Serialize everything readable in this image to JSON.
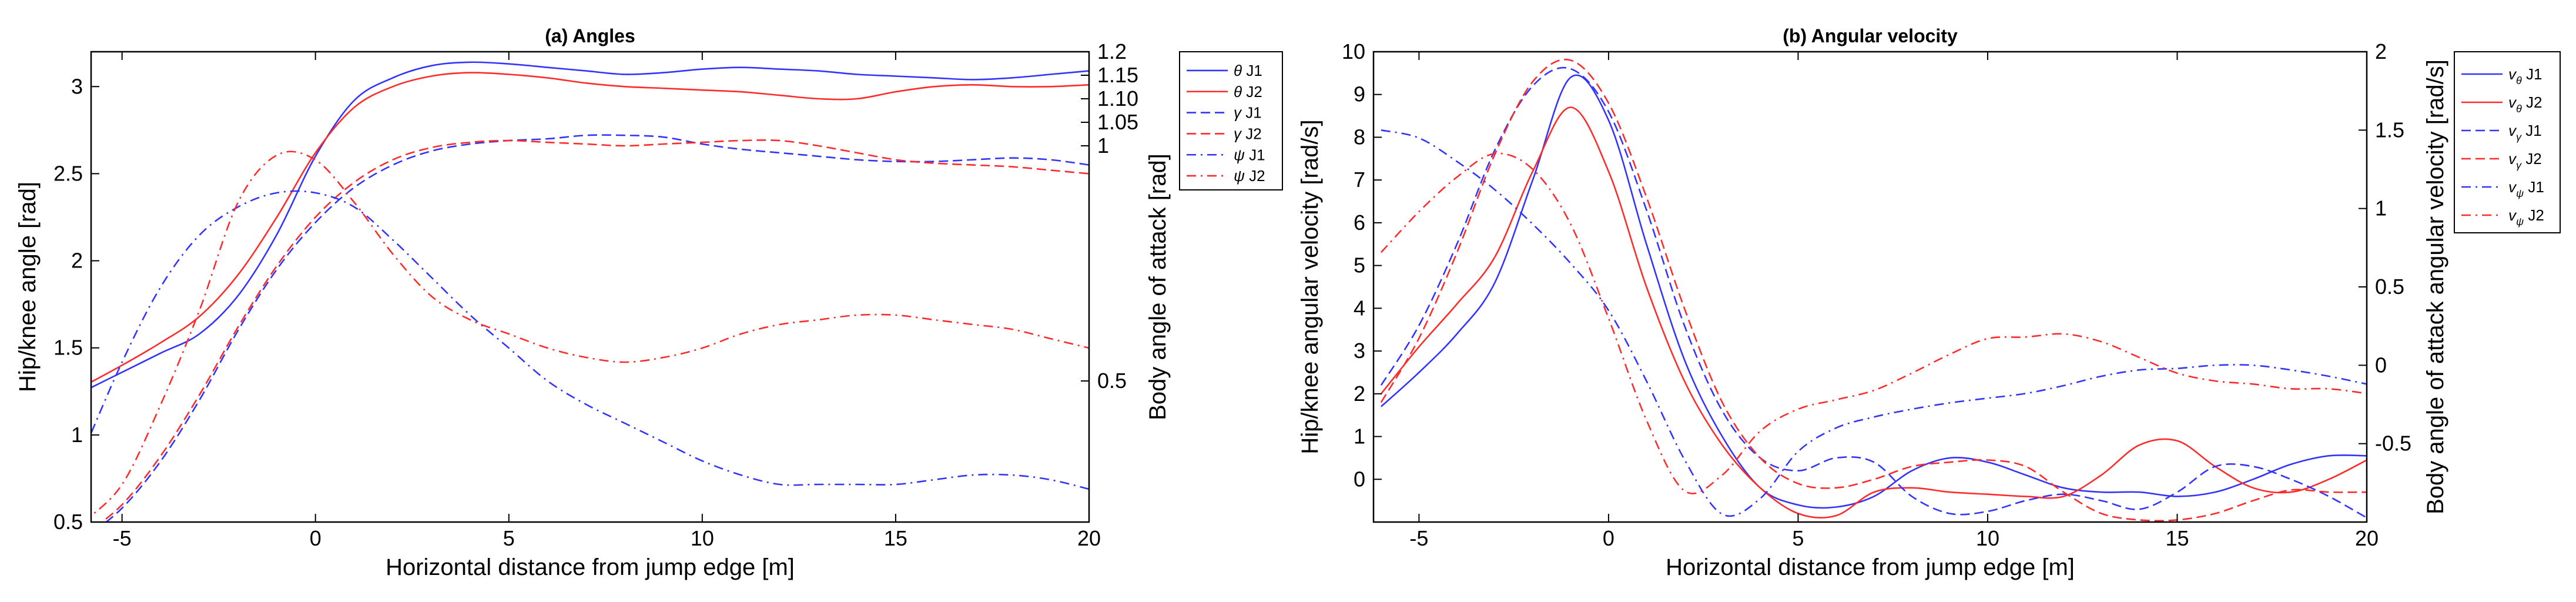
{
  "chart_data": [
    {
      "type": "line",
      "title": "(a) Angles",
      "xlabel": "Horizontal distance from jump edge [m]",
      "ylabel": "Hip/knee angle [rad]",
      "y2label": "Body angle of attack [rad]",
      "xlim": [
        -5.8,
        20
      ],
      "ylim": [
        0.5,
        3.2
      ],
      "y2lim": [
        0.2,
        1.2
      ],
      "xticks": [
        -5,
        0,
        5,
        10,
        15,
        20
      ],
      "xticklabels": [
        "-5",
        "0",
        "5",
        "10",
        "15",
        "20"
      ],
      "yticks": [
        0.5,
        1,
        1.5,
        2,
        2.5,
        3
      ],
      "yticklabels": [
        "0.5",
        "1",
        "1.5",
        "2",
        "2.5",
        "3"
      ],
      "y2ticks": [
        0.5,
        1,
        1.05,
        1.1,
        1.15,
        1.2
      ],
      "y2ticklabels": [
        "0.5",
        "1",
        "1.05",
        "1.10",
        "1.15",
        "1.2"
      ],
      "legend_position": "outside-right",
      "series": [
        {
          "name": "θ J1",
          "label_sym": "θ",
          "label_txt": "J1",
          "sub": "",
          "color": "#3333ff",
          "dash": "solid",
          "axis": "left",
          "x": [
            -6,
            -5,
            -4,
            -3,
            -2,
            -1,
            0,
            1,
            2,
            3,
            4,
            5,
            6,
            7,
            8,
            9,
            10,
            11,
            12,
            13,
            14,
            15,
            16,
            17,
            18,
            19,
            20
          ],
          "y": [
            1.25,
            1.36,
            1.47,
            1.58,
            1.8,
            2.15,
            2.6,
            2.92,
            3.05,
            3.12,
            3.14,
            3.13,
            3.11,
            3.09,
            3.07,
            3.08,
            3.1,
            3.11,
            3.1,
            3.09,
            3.07,
            3.06,
            3.05,
            3.04,
            3.05,
            3.07,
            3.09
          ]
        },
        {
          "name": "θ J2",
          "label_sym": "θ",
          "label_txt": "J2",
          "sub": "",
          "color": "#ff2a2a",
          "dash": "solid",
          "axis": "left",
          "x": [
            -6,
            -5,
            -4,
            -3,
            -2,
            -1,
            0,
            1,
            2,
            3,
            4,
            5,
            6,
            7,
            8,
            9,
            10,
            11,
            12,
            13,
            14,
            15,
            16,
            17,
            18,
            19,
            20
          ],
          "y": [
            1.28,
            1.4,
            1.53,
            1.68,
            1.92,
            2.25,
            2.62,
            2.88,
            3.0,
            3.06,
            3.08,
            3.07,
            3.05,
            3.02,
            3.0,
            2.99,
            2.98,
            2.97,
            2.95,
            2.93,
            2.93,
            2.97,
            3.0,
            3.01,
            3.0,
            3.0,
            3.01
          ]
        },
        {
          "name": "γ J1",
          "label_sym": "γ",
          "label_txt": "J1",
          "sub": "",
          "color": "#3333ff",
          "dash": "dashed",
          "axis": "left",
          "x": [
            -6,
            -5,
            -4,
            -3,
            -2,
            -1,
            0,
            1,
            2,
            3,
            4,
            5,
            6,
            7,
            8,
            9,
            10,
            11,
            12,
            13,
            14,
            15,
            16,
            17,
            18,
            19,
            20
          ],
          "y": [
            0.4,
            0.58,
            0.85,
            1.2,
            1.6,
            1.95,
            2.22,
            2.42,
            2.55,
            2.63,
            2.67,
            2.69,
            2.7,
            2.72,
            2.72,
            2.71,
            2.67,
            2.64,
            2.62,
            2.6,
            2.58,
            2.57,
            2.57,
            2.58,
            2.59,
            2.58,
            2.55
          ]
        },
        {
          "name": "γ J2",
          "label_sym": "γ",
          "label_txt": "J2",
          "sub": "",
          "color": "#ff2a2a",
          "dash": "dashed",
          "axis": "left",
          "x": [
            -6,
            -5,
            -4,
            -3,
            -2,
            -1,
            0,
            1,
            2,
            3,
            4,
            5,
            6,
            7,
            8,
            9,
            10,
            11,
            12,
            13,
            14,
            15,
            16,
            17,
            18,
            19,
            20
          ],
          "y": [
            0.42,
            0.6,
            0.88,
            1.23,
            1.62,
            1.97,
            2.25,
            2.45,
            2.58,
            2.65,
            2.68,
            2.69,
            2.68,
            2.67,
            2.66,
            2.67,
            2.68,
            2.69,
            2.69,
            2.66,
            2.62,
            2.58,
            2.56,
            2.55,
            2.54,
            2.52,
            2.5
          ]
        },
        {
          "name": "ψ J1",
          "label_sym": "ψ",
          "label_txt": "J1",
          "sub": "",
          "color": "#3333ff",
          "dash": "dashdot",
          "axis": "right",
          "x": [
            -6,
            -5,
            -4,
            -3,
            -2,
            -1,
            0,
            1,
            2,
            3,
            4,
            5,
            6,
            7,
            8,
            9,
            10,
            11,
            12,
            13,
            14,
            15,
            16,
            17,
            18,
            19,
            20
          ],
          "y": [
            0.35,
            0.54,
            0.7,
            0.81,
            0.87,
            0.9,
            0.9,
            0.87,
            0.8,
            0.72,
            0.64,
            0.57,
            0.5,
            0.45,
            0.41,
            0.37,
            0.33,
            0.3,
            0.28,
            0.28,
            0.28,
            0.28,
            0.29,
            0.3,
            0.3,
            0.29,
            0.27
          ]
        },
        {
          "name": "ψ J2",
          "label_sym": "ψ",
          "label_txt": "J2",
          "sub": "",
          "color": "#ff2a2a",
          "dash": "dashdot",
          "axis": "right",
          "x": [
            -6,
            -5,
            -4,
            -3,
            -2,
            -1,
            0,
            1,
            2,
            3,
            4,
            5,
            6,
            7,
            8,
            9,
            10,
            11,
            12,
            13,
            14,
            15,
            16,
            17,
            18,
            19,
            20
          ],
          "y": [
            0.2,
            0.28,
            0.45,
            0.65,
            0.88,
            0.98,
            0.97,
            0.88,
            0.77,
            0.68,
            0.63,
            0.6,
            0.57,
            0.55,
            0.54,
            0.55,
            0.57,
            0.6,
            0.62,
            0.63,
            0.64,
            0.64,
            0.63,
            0.62,
            0.61,
            0.59,
            0.57
          ]
        }
      ]
    },
    {
      "type": "line",
      "title": "(b) Angular velocity",
      "xlabel": "Horizontal distance from jump edge [m]",
      "ylabel": "Hip/knee angular velocity [rad/s]",
      "y2label": "Body angle of attack angular velocity [rad/s]",
      "xlim": [
        -6.2,
        20
      ],
      "ylim": [
        -1,
        10
      ],
      "y2lim": [
        -1,
        2
      ],
      "xticks": [
        -5,
        0,
        5,
        10,
        15,
        20
      ],
      "xticklabels": [
        "-5",
        "0",
        "5",
        "10",
        "15",
        "20"
      ],
      "yticks": [
        0,
        1,
        2,
        3,
        4,
        5,
        6,
        7,
        8,
        9,
        10
      ],
      "yticklabels": [
        "0",
        "1",
        "2",
        "3",
        "4",
        "5",
        "6",
        "7",
        "8",
        "9",
        "10"
      ],
      "y2ticks": [
        -0.5,
        0,
        0.5,
        1,
        1.5,
        2
      ],
      "y2ticklabels": [
        "-0.5",
        "0",
        "0.5",
        "1",
        "1.5",
        "2"
      ],
      "legend_position": "outside-right",
      "series": [
        {
          "name": "vθ J1",
          "label_sym": "v",
          "label_txt": "J1",
          "sub": "θ",
          "color": "#3333ff",
          "dash": "solid",
          "axis": "left",
          "x": [
            -6,
            -5,
            -4,
            -3,
            -2,
            -1,
            0,
            1,
            2,
            3,
            4,
            5,
            6,
            7,
            8,
            9,
            10,
            11,
            12,
            13,
            14,
            15,
            16,
            17,
            18,
            19,
            20
          ],
          "y": [
            1.7,
            2.5,
            3.4,
            4.6,
            7.0,
            9.4,
            8.4,
            5.5,
            2.8,
            1.0,
            -0.2,
            -0.6,
            -0.65,
            -0.4,
            0.2,
            0.5,
            0.4,
            0.1,
            -0.2,
            -0.3,
            -0.3,
            -0.4,
            -0.3,
            0.0,
            0.35,
            0.55,
            0.55
          ]
        },
        {
          "name": "vθ J2",
          "label_sym": "v",
          "label_txt": "J2",
          "sub": "θ",
          "color": "#ff2a2a",
          "dash": "solid",
          "axis": "left",
          "x": [
            -6,
            -5,
            -4,
            -3,
            -2,
            -1,
            0,
            1,
            2,
            3,
            4,
            5,
            6,
            7,
            8,
            9,
            10,
            11,
            12,
            13,
            14,
            15,
            16,
            17,
            18,
            19,
            20
          ],
          "y": [
            2.0,
            3.1,
            4.1,
            5.2,
            7.2,
            8.7,
            7.2,
            4.5,
            2.3,
            0.8,
            -0.2,
            -0.8,
            -0.85,
            -0.3,
            -0.2,
            -0.3,
            -0.35,
            -0.4,
            -0.4,
            0.1,
            0.8,
            0.9,
            0.3,
            -0.2,
            -0.3,
            0.0,
            0.45
          ]
        },
        {
          "name": "vγ J1",
          "label_sym": "v",
          "label_txt": "J1",
          "sub": "γ",
          "color": "#3333ff",
          "dash": "dashed",
          "axis": "left",
          "x": [
            -6,
            -5,
            -4,
            -3,
            -2,
            -1,
            0,
            1,
            2,
            3,
            4,
            5,
            6,
            7,
            8,
            9,
            10,
            11,
            12,
            13,
            14,
            15,
            16,
            17,
            18,
            19,
            20
          ],
          "y": [
            2.2,
            3.6,
            5.5,
            7.7,
            9.2,
            9.6,
            8.6,
            6.3,
            3.6,
            1.6,
            0.5,
            0.2,
            0.5,
            0.4,
            -0.4,
            -0.8,
            -0.75,
            -0.5,
            -0.35,
            -0.5,
            -0.7,
            -0.3,
            0.3,
            0.3,
            0.0,
            -0.4,
            -0.9
          ]
        },
        {
          "name": "vγ J2",
          "label_sym": "v",
          "label_txt": "J2",
          "sub": "γ",
          "color": "#ff2a2a",
          "dash": "dashed",
          "axis": "left",
          "x": [
            -6,
            -5,
            -4,
            -3,
            -2,
            -1,
            0,
            1,
            2,
            3,
            4,
            5,
            6,
            7,
            8,
            9,
            10,
            11,
            12,
            13,
            14,
            15,
            16,
            17,
            18,
            19,
            20
          ],
          "y": [
            1.8,
            3.3,
            5.3,
            7.6,
            9.3,
            9.8,
            8.8,
            6.6,
            4.0,
            1.8,
            0.5,
            -0.1,
            -0.2,
            0.0,
            0.3,
            0.4,
            0.45,
            0.3,
            -0.3,
            -0.8,
            -0.95,
            -0.95,
            -0.8,
            -0.5,
            -0.25,
            -0.3,
            -0.3
          ]
        },
        {
          "name": "vψ J1",
          "label_sym": "v",
          "label_txt": "J1",
          "sub": "ψ",
          "color": "#3333ff",
          "dash": "dashdot",
          "axis": "right",
          "x": [
            -6,
            -5,
            -4,
            -3,
            -2,
            -1,
            0,
            1,
            2,
            3,
            4,
            5,
            6,
            7,
            8,
            9,
            10,
            11,
            12,
            13,
            14,
            15,
            16,
            17,
            18,
            19,
            20
          ],
          "y": [
            1.5,
            1.45,
            1.3,
            1.12,
            0.9,
            0.65,
            0.35,
            -0.1,
            -0.6,
            -0.95,
            -0.85,
            -0.55,
            -0.4,
            -0.33,
            -0.28,
            -0.24,
            -0.21,
            -0.18,
            -0.13,
            -0.07,
            -0.03,
            -0.02,
            0.0,
            0.0,
            -0.03,
            -0.07,
            -0.12
          ]
        },
        {
          "name": "vψ J2",
          "label_sym": "v",
          "label_txt": "J2",
          "sub": "ψ",
          "color": "#ff2a2a",
          "dash": "dashdot",
          "axis": "right",
          "x": [
            -6,
            -5,
            -4,
            -3,
            -2,
            -1,
            0,
            1,
            2,
            3,
            4,
            5,
            6,
            7,
            8,
            9,
            10,
            11,
            12,
            13,
            14,
            15,
            16,
            17,
            18,
            19,
            20
          ],
          "y": [
            0.72,
            0.98,
            1.2,
            1.35,
            1.25,
            0.9,
            0.3,
            -0.35,
            -0.8,
            -0.7,
            -0.42,
            -0.28,
            -0.22,
            -0.16,
            -0.05,
            0.07,
            0.17,
            0.18,
            0.2,
            0.15,
            0.05,
            -0.05,
            -0.1,
            -0.12,
            -0.15,
            -0.15,
            -0.18
          ]
        }
      ]
    }
  ]
}
